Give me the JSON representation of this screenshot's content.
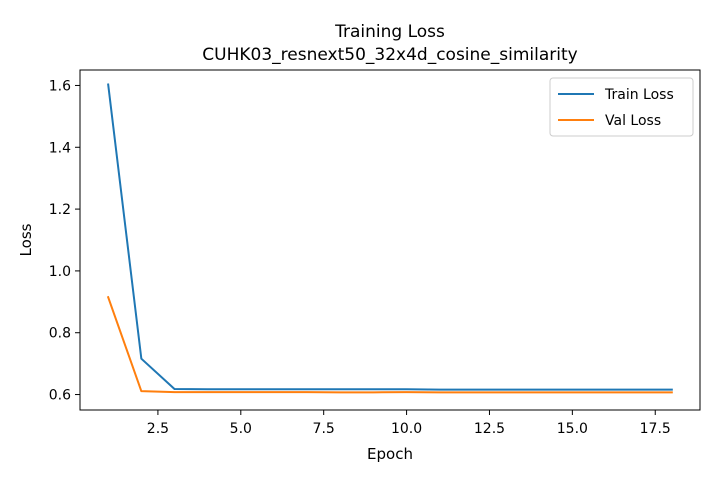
{
  "chart_data": {
    "type": "line",
    "title": "Training Loss",
    "subtitle": "CUHK03_resnext50_32x4d_cosine_similarity",
    "xlabel": "Epoch",
    "ylabel": "Loss",
    "xlim": [
      0.15,
      18.85
    ],
    "ylim": [
      0.55,
      1.65
    ],
    "xticks": [
      2.5,
      5.0,
      7.5,
      10.0,
      12.5,
      15.0,
      17.5
    ],
    "xtick_labels": [
      "2.5",
      "5.0",
      "7.5",
      "10.0",
      "12.5",
      "15.0",
      "17.5"
    ],
    "yticks": [
      0.6,
      0.8,
      1.0,
      1.2,
      1.4,
      1.6
    ],
    "ytick_labels": [
      "0.6",
      "0.8",
      "1.0",
      "1.2",
      "1.4",
      "1.6"
    ],
    "grid": false,
    "legend_position": "top-right",
    "x": [
      1,
      2,
      3,
      4,
      5,
      6,
      7,
      8,
      9,
      10,
      11,
      12,
      13,
      14,
      15,
      16,
      17,
      18
    ],
    "series": [
      {
        "name": "Train Loss",
        "color": "#1f77b4",
        "values": [
          1.603,
          0.716,
          0.618,
          0.617,
          0.617,
          0.617,
          0.617,
          0.617,
          0.617,
          0.617,
          0.616,
          0.616,
          0.616,
          0.616,
          0.616,
          0.616,
          0.616,
          0.616
        ]
      },
      {
        "name": "Val Loss",
        "color": "#ff7f0e",
        "values": [
          0.915,
          0.611,
          0.608,
          0.608,
          0.608,
          0.608,
          0.608,
          0.607,
          0.607,
          0.608,
          0.607,
          0.607,
          0.607,
          0.607,
          0.607,
          0.607,
          0.607,
          0.607
        ]
      }
    ]
  }
}
